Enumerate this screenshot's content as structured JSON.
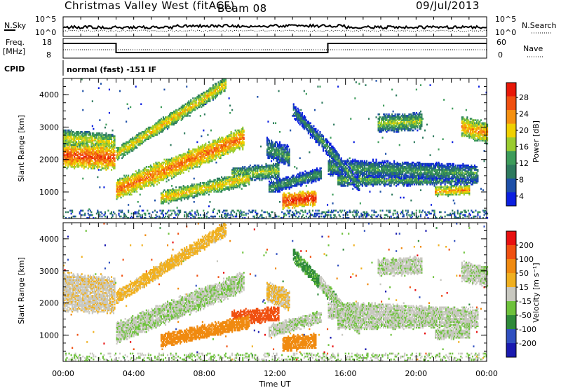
{
  "header": {
    "title": "Christmas Valley West (fitACF)",
    "beam": "Beam 08",
    "date": "09/Jul/2013"
  },
  "top_panels": {
    "nsky_label": "N.Sky",
    "nsky_ticks": [
      "10^5",
      "10^0"
    ],
    "nsearch_label": "N.Search",
    "nsearch_ticks": [
      "10^5",
      "10^0"
    ],
    "freq_label": "Freq.",
    "freq_unit": "[MHz]",
    "freq_ticks": [
      "18",
      "8"
    ],
    "nave_label": "Nave",
    "nave_ticks": [
      "60",
      "0"
    ],
    "cpid_label": "CPID",
    "cpid_text": "normal (fast) -151 IF"
  },
  "colors": {
    "power_scale": [
      "#0b1fe0",
      "#1d4fa8",
      "#2e7a5e",
      "#3d9c5a",
      "#9acc30",
      "#f0d000",
      "#f59010",
      "#f05010",
      "#e81808"
    ],
    "velocity_scale": [
      "#1a1ab0",
      "#3050c0",
      "#2f8a3a",
      "#6ec23c",
      "#c8c8c0",
      "#f0b020",
      "#f08a10",
      "#f05010",
      "#e81010"
    ]
  },
  "chart_data": [
    {
      "type": "heatmap",
      "title": "",
      "xlabel": "",
      "ylabel": "Slant Range [km]",
      "x_ticks": [
        "00:00",
        "04:00",
        "08:00",
        "12:00",
        "16:00",
        "20:00",
        "00:00"
      ],
      "xlim": [
        0,
        24
      ],
      "y_ticks": [
        "4000",
        "3000",
        "2000",
        "1000"
      ],
      "ylim": [
        180,
        4500
      ],
      "colorbar": {
        "label": "Power [dB]",
        "ticks": [
          "28",
          "24",
          "20",
          "16",
          "12",
          "8",
          "4"
        ],
        "range": [
          0,
          30
        ]
      }
    },
    {
      "type": "heatmap",
      "title": "",
      "xlabel": "Time UT",
      "ylabel": "Slant Range [km]",
      "x_ticks": [
        "00:00",
        "04:00",
        "08:00",
        "12:00",
        "16:00",
        "20:00",
        "00:00"
      ],
      "xlim": [
        0,
        24
      ],
      "y_ticks": [
        "4000",
        "3000",
        "2000",
        "1000"
      ],
      "ylim": [
        180,
        4500
      ],
      "colorbar": {
        "label": "Velocity [m s⁻¹]",
        "ticks": [
          "200",
          "100",
          "50",
          "15",
          "-15",
          "-50",
          "-100",
          "-200"
        ],
        "range": [
          -250,
          250
        ]
      }
    }
  ]
}
